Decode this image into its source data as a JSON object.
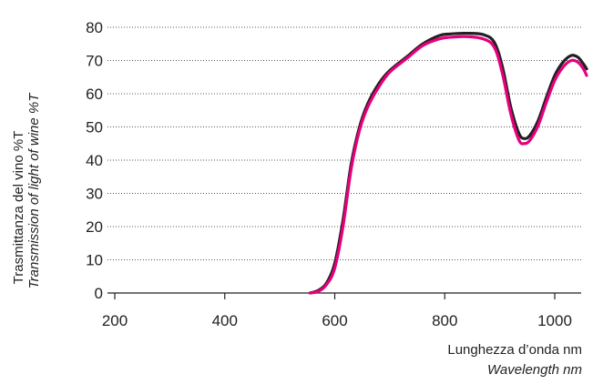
{
  "chart_data": {
    "type": "line",
    "title": "",
    "xlabel": "Lunghezza d’onda nm",
    "xlabel_secondary": "Wavelength nm",
    "ylabel": "Trasmittanza del vino %T",
    "ylabel_secondary": "Transmission of light of wine %T",
    "xlim": [
      200,
      1060
    ],
    "ylim": [
      0,
      80
    ],
    "x_ticks": [
      "200",
      "400",
      "600",
      "800",
      "1000"
    ],
    "y_ticks": [
      "0",
      "10",
      "20",
      "30",
      "40",
      "50",
      "60",
      "70",
      "80"
    ],
    "grid": "horizontal-dotted",
    "legend": "none",
    "series": [
      {
        "color": "#231f20",
        "x": [
          555,
          570,
          585,
          600,
          615,
          630,
          645,
          660,
          680,
          700,
          730,
          760,
          790,
          810,
          840,
          870,
          890,
          905,
          920,
          935,
          945,
          955,
          970,
          985,
          1000,
          1015,
          1030,
          1042,
          1052,
          1058
        ],
        "y": [
          0,
          0.8,
          3,
          9,
          22,
          39,
          50,
          57,
          63,
          67,
          71,
          75,
          77.5,
          78,
          78.2,
          77.8,
          75.5,
          68,
          56,
          48,
          46.5,
          47.5,
          52,
          59,
          65.5,
          69.5,
          71.5,
          71,
          69,
          67.5
        ]
      },
      {
        "color": "#e6007e",
        "x": [
          555,
          570,
          585,
          600,
          615,
          630,
          645,
          660,
          680,
          700,
          730,
          760,
          790,
          810,
          840,
          870,
          890,
          905,
          920,
          935,
          945,
          955,
          970,
          985,
          1000,
          1015,
          1030,
          1042,
          1052,
          1058
        ],
        "y": [
          0,
          0.5,
          2.5,
          7.5,
          20,
          37.5,
          49,
          56,
          62,
          66.5,
          70.5,
          74.5,
          76.5,
          77,
          77.2,
          76.5,
          74,
          66,
          54,
          46,
          45,
          46,
          50.5,
          57.5,
          64,
          68,
          70,
          69.5,
          67.5,
          65.5
        ]
      }
    ]
  }
}
